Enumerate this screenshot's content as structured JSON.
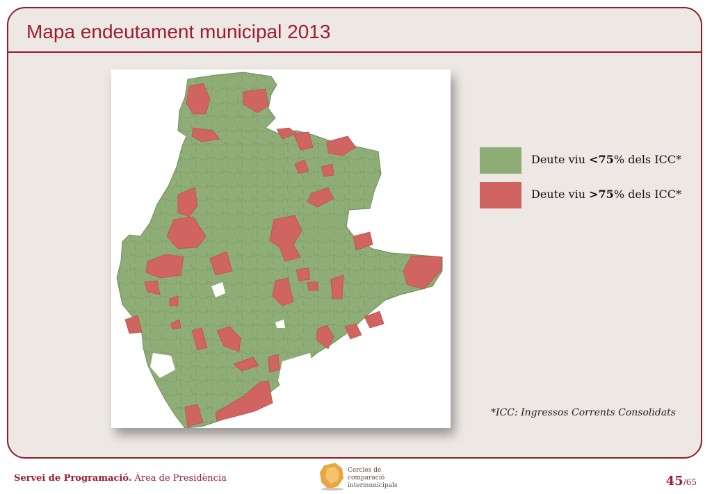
{
  "header": {
    "title": "Mapa endeutament municipal 2013"
  },
  "legend": {
    "items": [
      {
        "pre": "Deute viu ",
        "bold": "<75",
        "post": "% dels ICC*",
        "color": "#8fae77"
      },
      {
        "pre": "Deute viu ",
        "bold": ">75",
        "post": "% dels ICC*",
        "color": "#cf6460"
      }
    ]
  },
  "map": {
    "fill_colors": {
      "low": "#8fae77",
      "high": "#cf6460",
      "border": "#6f8c5c"
    }
  },
  "footnote": "*ICC: Ingressos Corrents Consolidats",
  "footer": {
    "org_bold": "Servei de Programació.",
    "org_rest": " Àrea de Presidència",
    "logo_line1": "Cercles de comparació",
    "logo_line2": "intermunicipals",
    "page_current": "45",
    "page_total": "/65"
  }
}
